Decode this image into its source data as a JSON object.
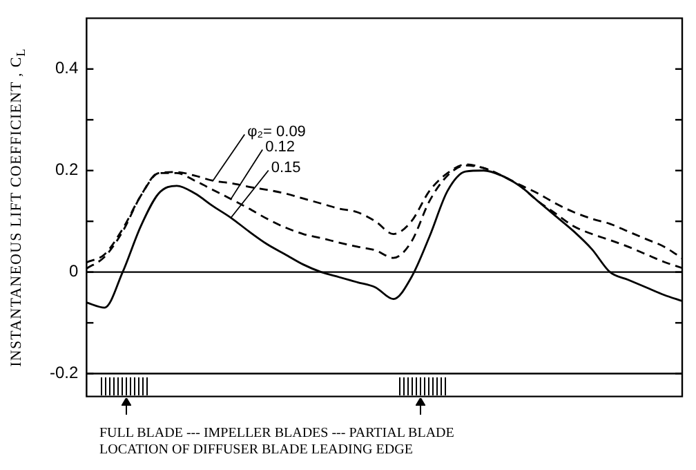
{
  "chart_data": {
    "type": "line",
    "ylabel": "INSTANTANEOUS LIFT COEFFICIENT , C$_{L}$",
    "categories": [
      null,
      null,
      null,
      null,
      null,
      null,
      null,
      null,
      null,
      null,
      null,
      null,
      null,
      null,
      null,
      null,
      null,
      null,
      null,
      null,
      null,
      null,
      null,
      null,
      null,
      null,
      null,
      null,
      null,
      null,
      null,
      null,
      null,
      null
    ],
    "series": [
      {
        "name": "φ₂= 0.09",
        "color": "#000000",
        "line_style": "dashed",
        "values": [
          0.019,
          0.035,
          0.085,
          0.15,
          0.195,
          0.197,
          0.19,
          0.18,
          0.175,
          0.168,
          0.162,
          0.155,
          0.145,
          0.135,
          0.125,
          0.118,
          0.1,
          0.075,
          0.1,
          0.16,
          0.195,
          0.212,
          0.205,
          0.19,
          0.172,
          0.155,
          0.135,
          0.118,
          0.105,
          0.095,
          0.08,
          0.065,
          0.05,
          0.027
        ]
      },
      {
        "name": "0.12",
        "color": "#000000",
        "line_style": "dashed",
        "values": [
          0.007,
          0.03,
          0.08,
          0.15,
          0.195,
          0.195,
          0.18,
          0.162,
          0.144,
          0.125,
          0.105,
          0.088,
          0.075,
          0.067,
          0.058,
          0.05,
          0.043,
          0.028,
          0.06,
          0.14,
          0.19,
          0.21,
          0.205,
          0.19,
          0.17,
          0.14,
          0.115,
          0.09,
          0.075,
          0.063,
          0.05,
          0.035,
          0.02,
          0.008
        ]
      },
      {
        "name": "0.15",
        "color": "#000000",
        "line_style": "solid",
        "values": [
          -0.06,
          -0.07,
          0.0,
          0.09,
          0.155,
          0.17,
          0.155,
          0.13,
          0.107,
          0.08,
          0.055,
          0.035,
          0.015,
          0.0,
          -0.01,
          -0.02,
          -0.03,
          -0.053,
          -0.01,
          0.07,
          0.16,
          0.198,
          0.2,
          0.19,
          0.17,
          0.14,
          0.11,
          0.08,
          0.045,
          0.0,
          -0.015,
          -0.03,
          -0.045,
          -0.057
        ]
      }
    ],
    "ylim": [
      -0.245,
      0.5
    ],
    "yticks": [
      -0.2,
      {
        "value": -0.1,
        "label": null
      },
      0,
      {
        "value": 0.1,
        "label": null
      },
      0.2,
      {
        "value": 0.3,
        "label": null
      },
      0.4
    ],
    "ref_lines": [
      {
        "axis": "y",
        "value": 0,
        "color": "#000000"
      },
      {
        "axis": "y",
        "value": -0.2,
        "color": "#000000"
      }
    ],
    "annotations": [
      "FULL BLADE --- IMPELLER BLADES --- PARTIAL BLADE",
      "LOCATION OF DIFFUSER BLADE LEADING EDGE"
    ],
    "grid": false,
    "legend": false,
    "tick_labels": "y"
  }
}
